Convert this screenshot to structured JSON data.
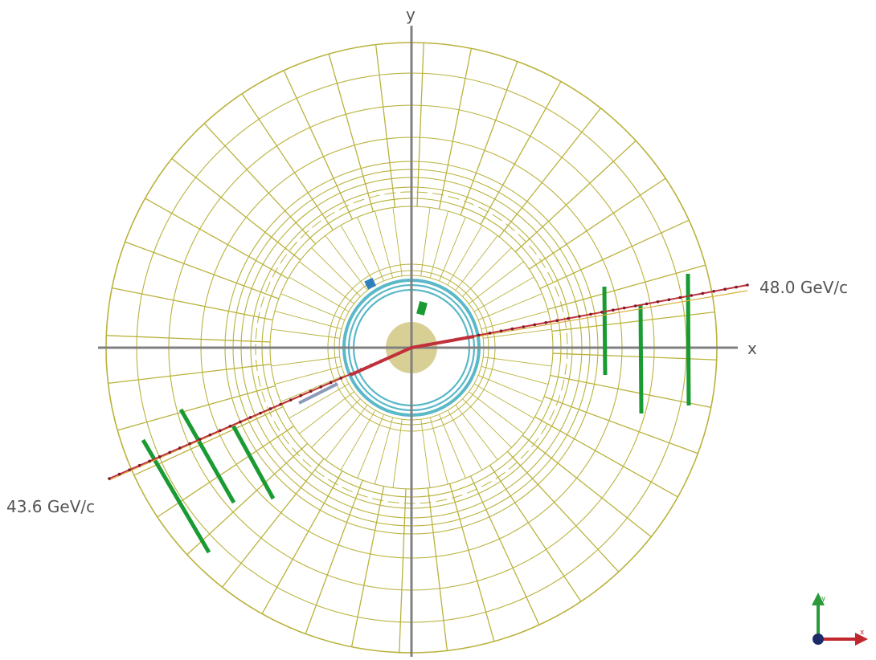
{
  "axes": {
    "x_label": "x",
    "y_label": "y"
  },
  "tracks": [
    {
      "label": "48.0 GeV/c",
      "side": "right"
    },
    {
      "label": "43.6 GeV/c",
      "side": "left"
    }
  ],
  "orientation_triad": {
    "x_label": "x",
    "y_label": "y"
  },
  "colors": {
    "detector_grid": "#b9b23c",
    "axes": "#808080",
    "beam_pipe": "#5ab8c8",
    "track": "#c0303a",
    "muon_hits": "#1a9a33",
    "vertex_region": "#d8cf94",
    "hit_blue": "#2f7fbf",
    "triad_x": "#c0282d",
    "triad_y": "#2a9a3a",
    "triad_z": "#1c2a6a"
  }
}
